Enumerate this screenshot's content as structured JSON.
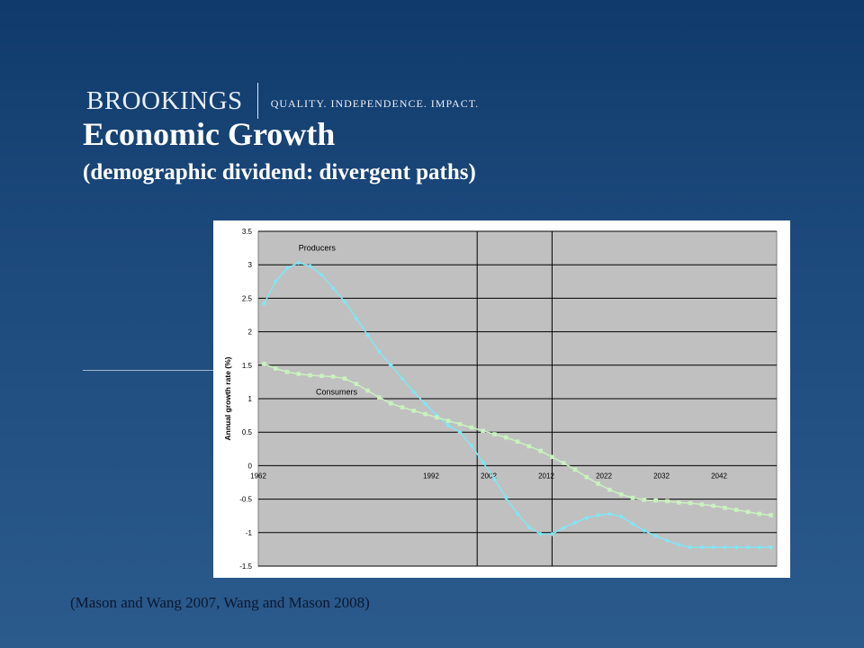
{
  "header": {
    "brand": "BROOKINGS",
    "tagline": "QUALITY. INDEPENDENCE. IMPACT.",
    "title": "Economic Growth",
    "subtitle": "(demographic dividend: divergent paths)"
  },
  "citation": "(Mason and Wang 2007, Wang and Mason 2008)",
  "colors": {
    "plot_bg": "#c0c0c0",
    "producers": "#7fe7f5",
    "consumers": "#c9f2be"
  },
  "chart_data": {
    "type": "line",
    "title": "",
    "xlabel": "",
    "ylabel": "Annual growth rate (%)",
    "xlim": [
      1962,
      2052
    ],
    "ylim": [
      -1.5,
      3.5
    ],
    "yticks": [
      "3.5",
      "3",
      "2.5",
      "2",
      "1.5",
      "1",
      "0.5",
      "0",
      "-0.5",
      "-1",
      "-1.5"
    ],
    "xticks": [
      "1962",
      "1992",
      "2002",
      "2012",
      "2022",
      "2032",
      "2042"
    ],
    "xtick_values": [
      1962,
      1992,
      2002,
      2012,
      2022,
      2032,
      2042
    ],
    "vertical_lines": [
      2000,
      2013
    ],
    "grid": true,
    "series": [
      {
        "name": "Producers",
        "x": [
          1963,
          1965,
          1967,
          1969,
          1971,
          1973,
          1975,
          1977,
          1979,
          1981,
          1983,
          1985,
          1987,
          1989,
          1991,
          1993,
          1995,
          1997,
          1999,
          2001,
          2003,
          2005,
          2007,
          2009,
          2011,
          2013,
          2015,
          2017,
          2019,
          2021,
          2023,
          2025,
          2027,
          2029,
          2031,
          2033,
          2035,
          2037,
          2039,
          2041,
          2043,
          2045,
          2047,
          2049,
          2051
        ],
        "y": [
          2.42,
          2.75,
          2.95,
          3.03,
          2.98,
          2.85,
          2.65,
          2.45,
          2.2,
          1.95,
          1.7,
          1.5,
          1.3,
          1.1,
          0.92,
          0.75,
          0.6,
          0.5,
          0.3,
          0.05,
          -0.2,
          -0.48,
          -0.72,
          -0.92,
          -1.02,
          -1.02,
          -0.93,
          -0.85,
          -0.78,
          -0.74,
          -0.72,
          -0.76,
          -0.87,
          -0.97,
          -1.05,
          -1.12,
          -1.18,
          -1.22,
          -1.22,
          -1.22,
          -1.22,
          -1.22,
          -1.22,
          -1.22,
          -1.22
        ],
        "label": "Producers"
      },
      {
        "name": "Consumers",
        "x": [
          1963,
          1965,
          1967,
          1969,
          1971,
          1973,
          1975,
          1977,
          1979,
          1981,
          1983,
          1985,
          1987,
          1989,
          1991,
          1993,
          1995,
          1997,
          1999,
          2001,
          2003,
          2005,
          2007,
          2009,
          2011,
          2013,
          2015,
          2017,
          2019,
          2021,
          2023,
          2025,
          2027,
          2029,
          2031,
          2033,
          2035,
          2037,
          2039,
          2041,
          2043,
          2045,
          2047,
          2049,
          2051
        ],
        "y": [
          1.52,
          1.45,
          1.4,
          1.37,
          1.35,
          1.34,
          1.33,
          1.3,
          1.22,
          1.12,
          1.02,
          0.93,
          0.87,
          0.82,
          0.77,
          0.72,
          0.67,
          0.62,
          0.57,
          0.52,
          0.47,
          0.42,
          0.36,
          0.29,
          0.22,
          0.13,
          0.04,
          -0.06,
          -0.17,
          -0.27,
          -0.36,
          -0.43,
          -0.48,
          -0.51,
          -0.52,
          -0.53,
          -0.55,
          -0.56,
          -0.58,
          -0.6,
          -0.63,
          -0.66,
          -0.69,
          -0.72,
          -0.74
        ],
        "label": "Consumers"
      }
    ]
  }
}
